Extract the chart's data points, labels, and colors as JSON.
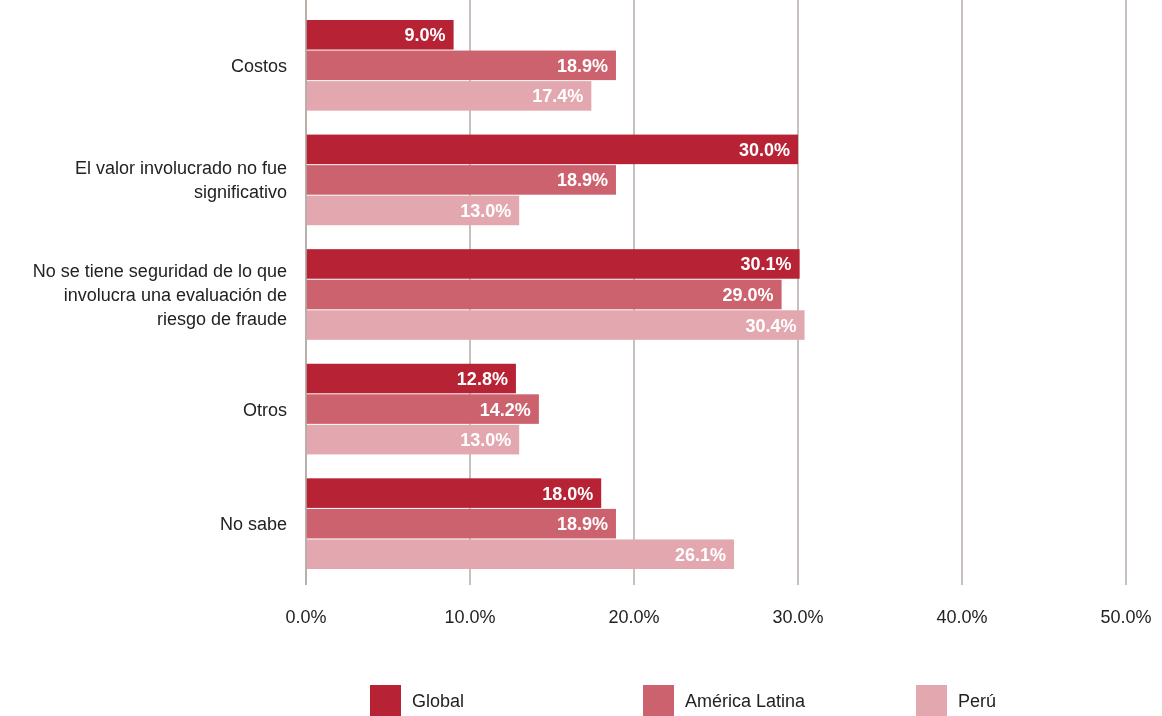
{
  "chart_data": {
    "type": "bar",
    "orientation": "horizontal",
    "categories": [
      "Costos",
      "El valor involucrado no fue significativo",
      "No se tiene seguridad de lo que involucra una evaluación de riesgo de fraude",
      "Otros",
      "No sabe"
    ],
    "series": [
      {
        "name": "Global",
        "color": "#b72234",
        "values": [
          9.0,
          30.0,
          30.1,
          12.8,
          18.0
        ],
        "value_labels": [
          "9.0%",
          "30.0%",
          "30.1%",
          "12.8%",
          "18.0%"
        ]
      },
      {
        "name": "América Latina",
        "color": "#cd626f",
        "values": [
          18.9,
          18.9,
          29.0,
          14.2,
          18.9
        ],
        "value_labels": [
          "18.9%",
          "18.9%",
          "29.0%",
          "14.2%",
          "18.9%"
        ]
      },
      {
        "name": "Perú",
        "color": "#e3a8af",
        "values": [
          17.4,
          13.0,
          30.4,
          13.0,
          26.1
        ],
        "value_labels": [
          "17.4%",
          "13.0%",
          "30.4%",
          "13.0%",
          "26.1%"
        ]
      }
    ],
    "xlim": [
      0,
      50
    ],
    "xticks": [
      {
        "value": 0,
        "label": "0.0%"
      },
      {
        "value": 10,
        "label": "10.0%"
      },
      {
        "value": 20,
        "label": "20.0%"
      },
      {
        "value": 30,
        "label": "30.0%"
      },
      {
        "value": 40,
        "label": "40.0%"
      },
      {
        "value": 50,
        "label": "50.0%"
      }
    ],
    "grid": "x",
    "legend": "bottom"
  }
}
